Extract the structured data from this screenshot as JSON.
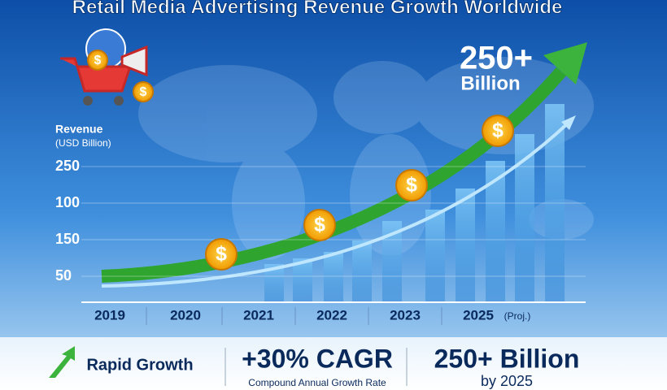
{
  "header": {
    "title": "Retail Media Advertising Revenue Growth Worldwide"
  },
  "headline": {
    "value": "250+",
    "unit": "Billion"
  },
  "axis": {
    "title": "Revenue",
    "subtitle": "(USD Billion)",
    "y_labels": [
      "250",
      "100",
      "150",
      "50"
    ],
    "x_labels": [
      {
        "year": "2019"
      },
      {
        "year": "2020"
      },
      {
        "year": "2021"
      },
      {
        "year": "2022"
      },
      {
        "year": "2023"
      },
      {
        "year": "2025",
        "note": "(Proj.)"
      }
    ]
  },
  "icons": {
    "coin": "$"
  },
  "footer": {
    "growth": "Rapid Growth",
    "cagr": "+30% CAGR",
    "cagr_note": "Compound Annual Growth Rate",
    "total": "250+ Billion",
    "total_note": "by 2025"
  }
}
